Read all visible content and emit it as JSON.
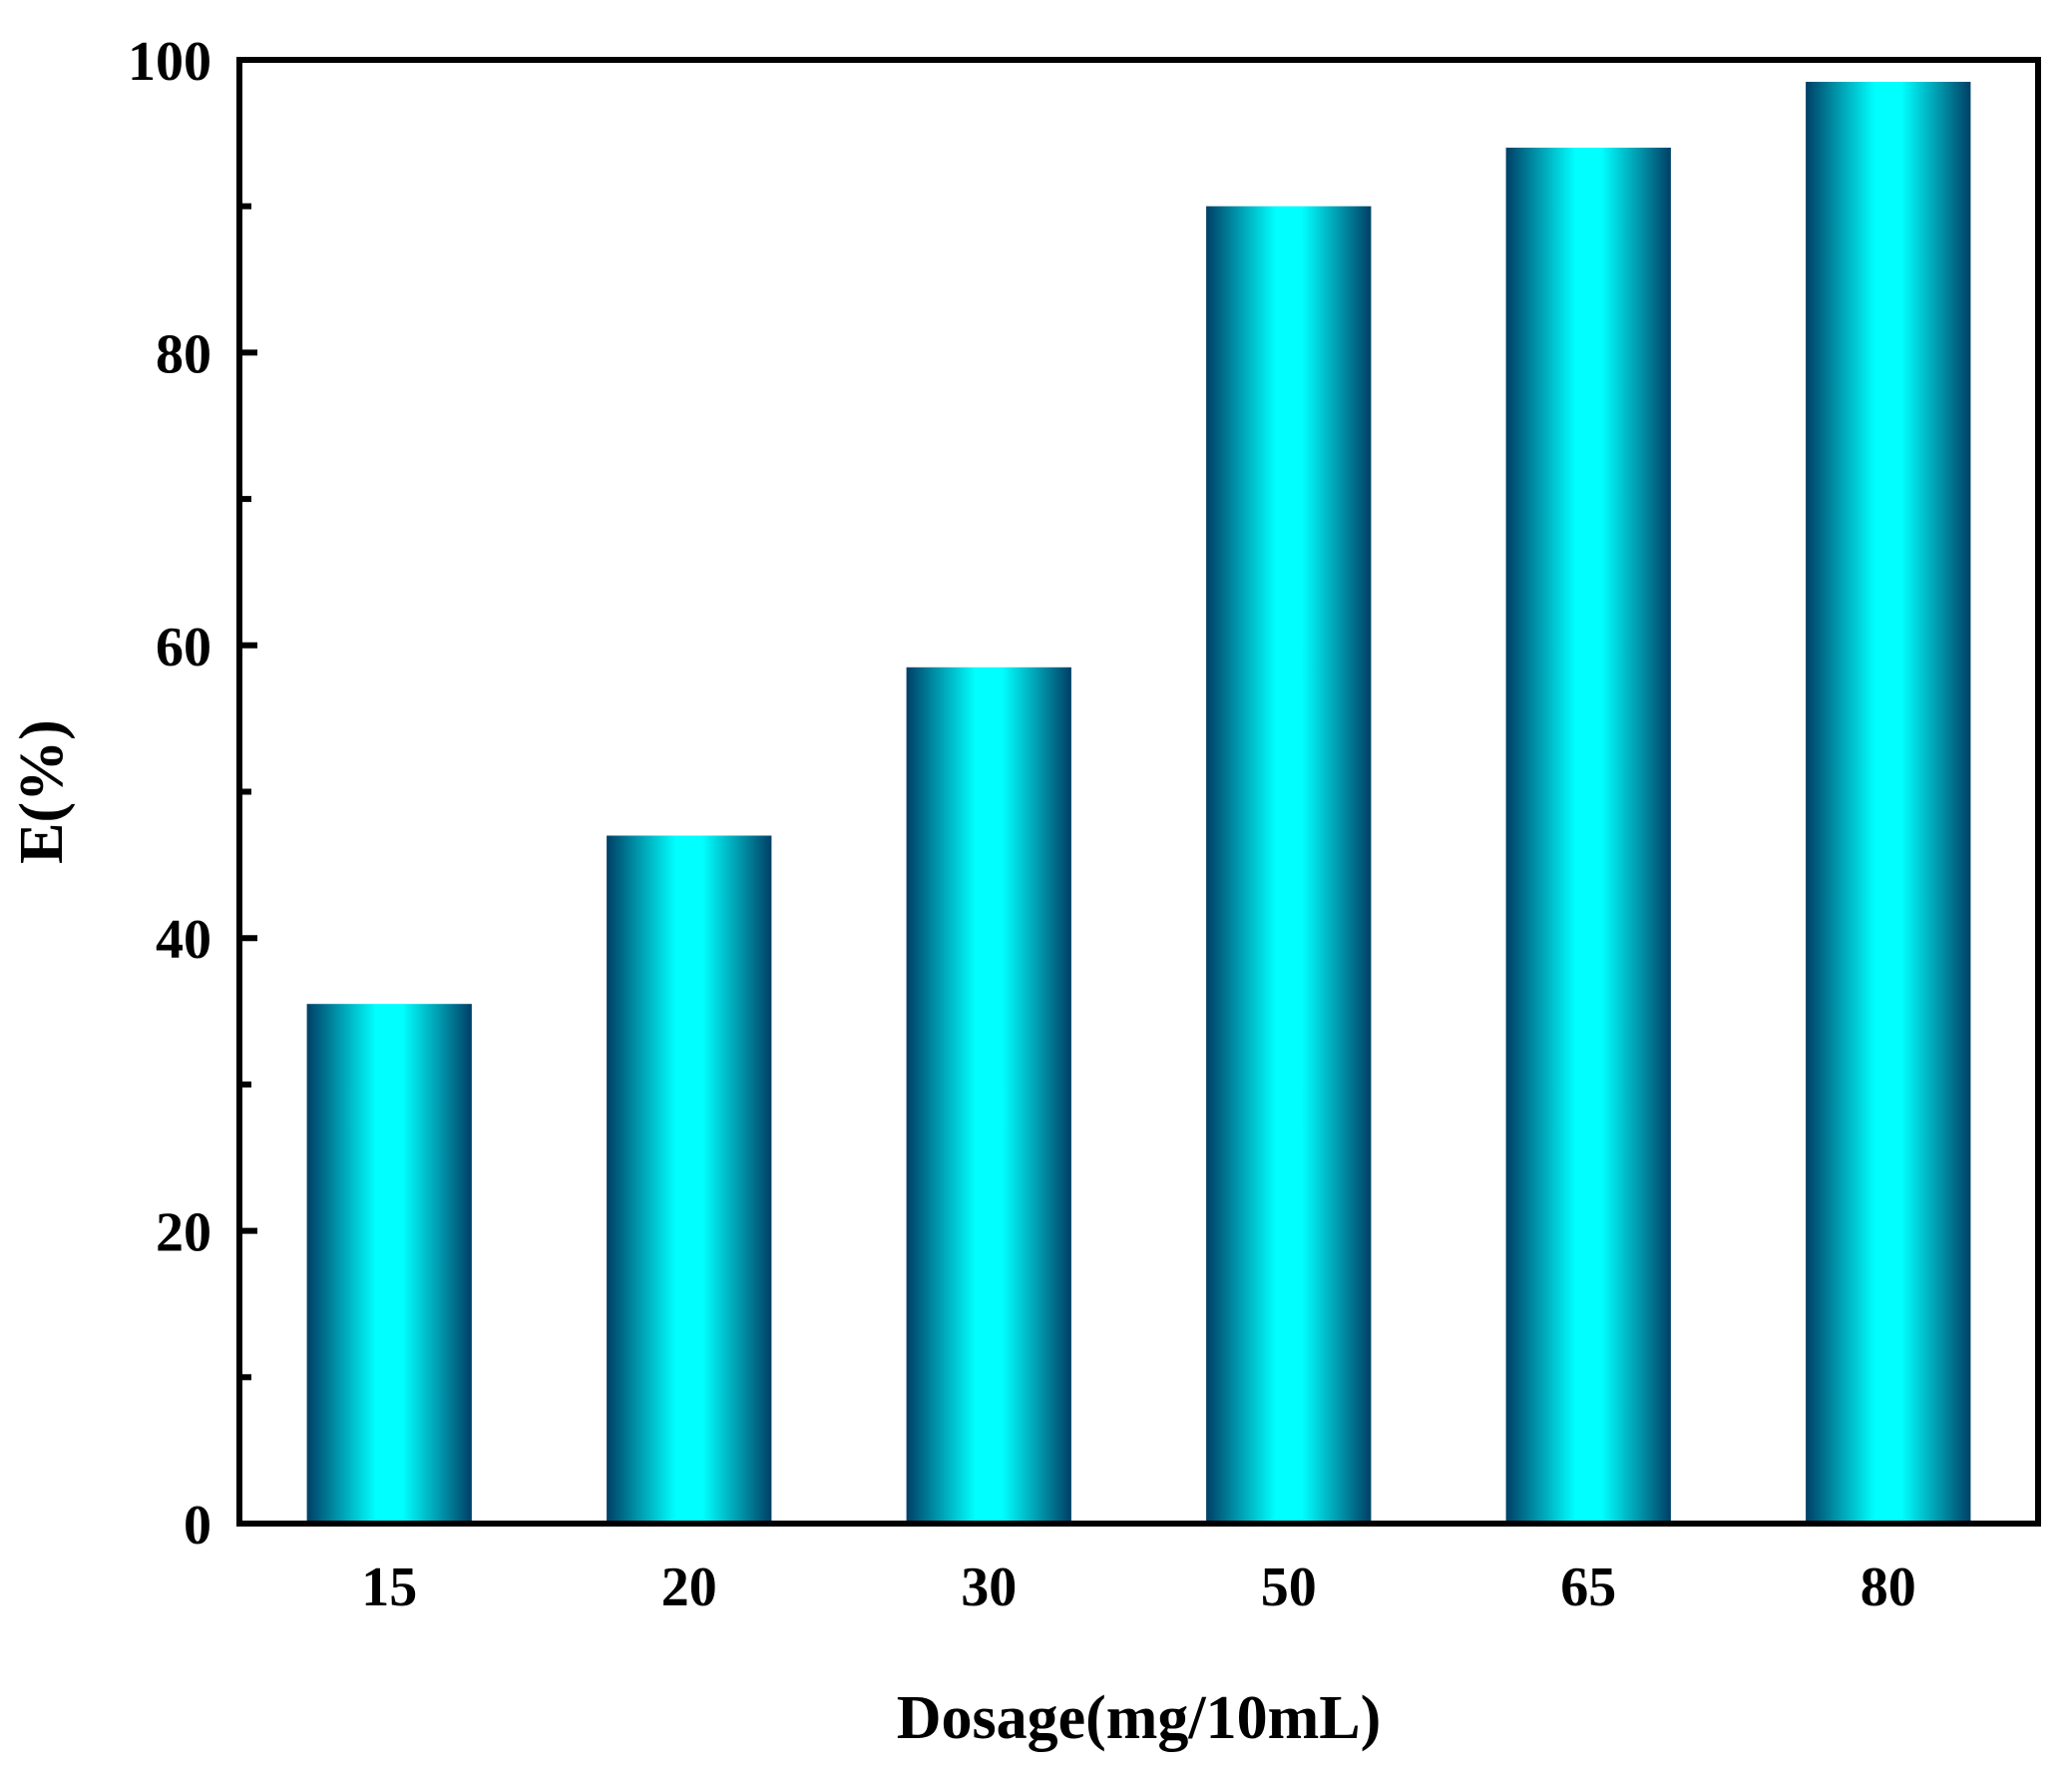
{
  "chart_data": {
    "type": "bar",
    "title": "",
    "xlabel": "Dosage(mg/10mL)",
    "ylabel": "E(%)",
    "categories": [
      "15",
      "20",
      "30",
      "50",
      "65",
      "80"
    ],
    "values": [
      35.5,
      47,
      58.5,
      90,
      94,
      98.5
    ],
    "ylim": [
      0,
      100
    ],
    "yticks": [
      0,
      20,
      40,
      60,
      80,
      100
    ],
    "y_minor_ticks": [
      10,
      30,
      50,
      70,
      90
    ],
    "ytick_labels": [
      "0",
      "20",
      "40",
      "60",
      "80",
      "100"
    ],
    "grid": false,
    "legend": "none",
    "colors": {
      "bar_center": "#00ffff",
      "bar_edge": "#003f66",
      "axis": "#000000"
    }
  }
}
